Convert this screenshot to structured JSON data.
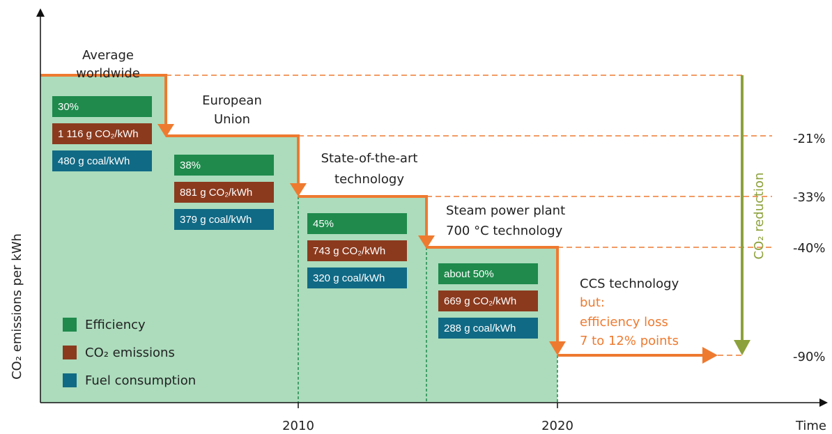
{
  "axes": {
    "y_label": "CO₂ emissions per kWh",
    "x_ticks": [
      "2010",
      "2020"
    ],
    "x_label": "Time"
  },
  "stages": [
    {
      "label_lines": [
        "Average",
        "worldwide"
      ],
      "efficiency": "30%",
      "emissions": "1 116 g CO₂/kWh",
      "fuel": "480 g coal/kWh"
    },
    {
      "label_lines": [
        "European",
        "Union"
      ],
      "efficiency": "38%",
      "emissions": "881 g CO₂/kWh",
      "fuel": "379 g coal/kWh"
    },
    {
      "label_lines": [
        "State-of-the-art",
        "technology"
      ],
      "efficiency": "45%",
      "emissions": "743 g CO₂/kWh",
      "fuel": "320 g coal/kWh"
    },
    {
      "label_lines": [
        "Steam power plant",
        "700 °C technology"
      ],
      "efficiency": "about 50%",
      "emissions": "669 g CO₂/kWh",
      "fuel": "288 g coal/kWh"
    }
  ],
  "ccs": {
    "label": "CCS technology",
    "note_lines": [
      "but:",
      "efficiency loss",
      "7 to 12% points"
    ]
  },
  "reductions": [
    "-21%",
    "-33%",
    "-40%",
    "-90%"
  ],
  "reduction_label": "CO₂ reduction",
  "legend": [
    "Efficiency",
    "CO₂ emissions",
    "Fuel consumption"
  ]
}
